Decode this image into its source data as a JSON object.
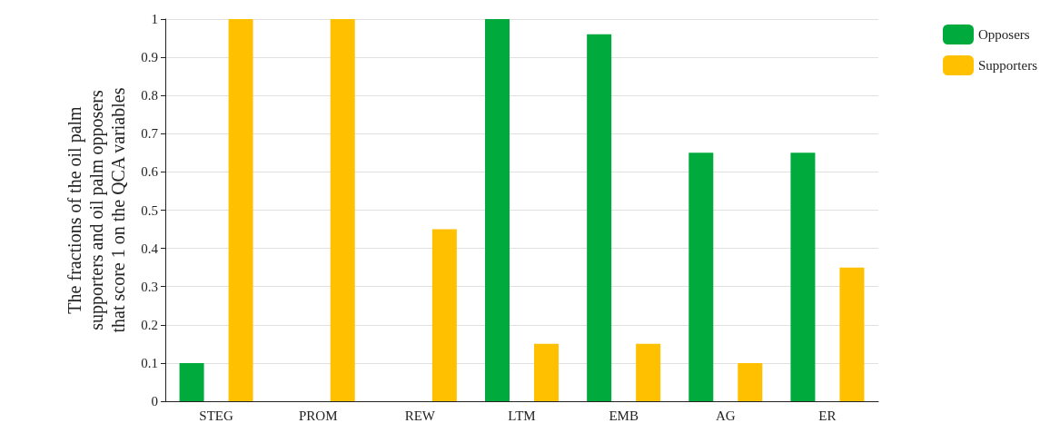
{
  "chart_data": {
    "type": "bar",
    "ylabel": "The fractions of the oil palm supporters and oil palm opposers that score 1 on the QCA variables",
    "categories": [
      "STEG",
      "PROM",
      "REW",
      "LTM",
      "EMB",
      "AG",
      "ER"
    ],
    "series": [
      {
        "name": "Opposers",
        "color": "#00aa3c",
        "values": [
          0.1,
          0,
          0,
          1,
          0.96,
          0.65,
          0.65
        ]
      },
      {
        "name": "Supporters",
        "color": "#ffc000",
        "values": [
          1,
          1,
          0.45,
          0.15,
          0.15,
          0.1,
          0.35
        ]
      }
    ],
    "ylim": [
      0,
      1
    ],
    "yticks": [
      0,
      0.1,
      0.2,
      0.3,
      0.4,
      0.5,
      0.6,
      0.7,
      0.8,
      0.9,
      1
    ],
    "grid": "y",
    "legend": "top right"
  }
}
